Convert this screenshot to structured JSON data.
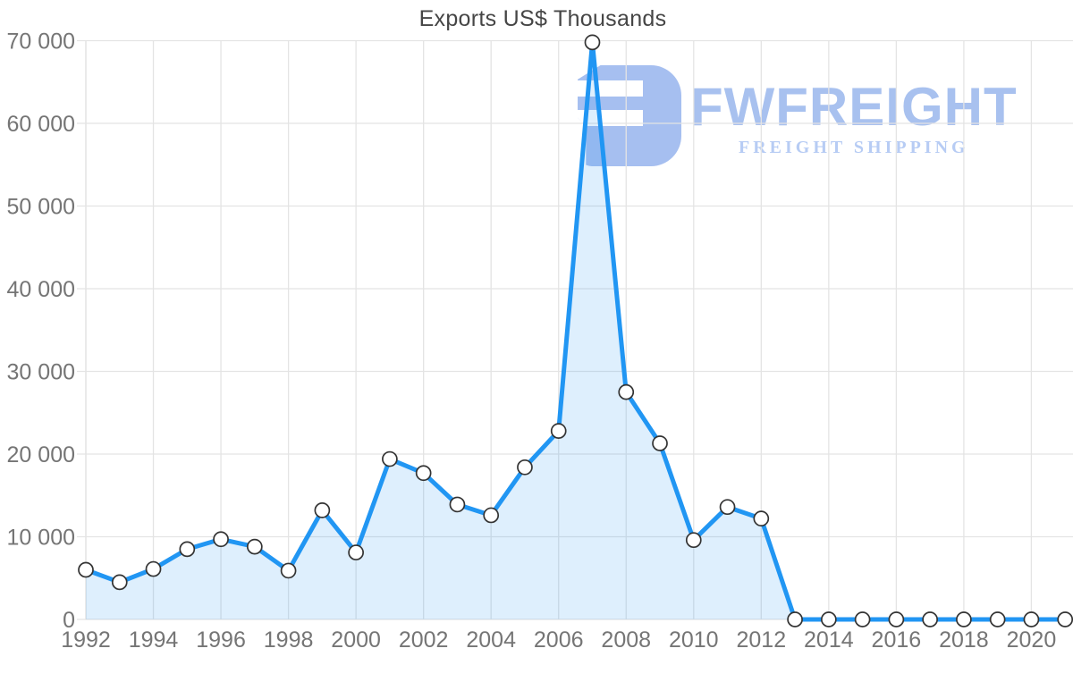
{
  "title": "Exports US$ Thousands",
  "watermark": {
    "brand": "FWFREIGHT",
    "tagline": "FREIGHT SHIPPING"
  },
  "colors": {
    "line": "#2196f3",
    "area": "rgba(33, 150, 243, 0.15)",
    "grid": "#e4e4e4",
    "axis_label": "#757575",
    "title_color": "#464646",
    "marker_fill": "#ffffff",
    "marker_stroke": "#333333",
    "watermark_brand": "#a8c1ef",
    "watermark_tagline": "#b7ccf4",
    "watermark_logo": "#a6bff0"
  },
  "chart_data": {
    "type": "area",
    "title": "Exports US$ Thousands",
    "x": [
      1992,
      1993,
      1994,
      1995,
      1996,
      1997,
      1998,
      1999,
      2000,
      2001,
      2002,
      2003,
      2004,
      2005,
      2006,
      2007,
      2008,
      2009,
      2010,
      2011,
      2012,
      2013,
      2014,
      2015,
      2016,
      2017,
      2018,
      2019,
      2020,
      2021
    ],
    "values": [
      6000,
      4500,
      6100,
      8500,
      9700,
      8800,
      5900,
      13200,
      8100,
      19400,
      17700,
      13900,
      12600,
      18400,
      22800,
      69800,
      27500,
      21300,
      9600,
      13600,
      12200,
      0,
      0,
      0,
      0,
      0,
      0,
      0,
      0,
      0
    ],
    "xlabel": "",
    "ylabel": "",
    "ylim": [
      0,
      70000
    ],
    "y_tick_step": 10000,
    "y_tick_labels": [
      "0",
      "10 000",
      "20 000",
      "30 000",
      "40 000",
      "50 000",
      "60 000",
      "70 000"
    ],
    "x_tick_labels": [
      "1992",
      "1994",
      "1996",
      "1998",
      "2000",
      "2002",
      "2004",
      "2006",
      "2008",
      "2010",
      "2012",
      "2014",
      "2016",
      "2018",
      "2020"
    ],
    "x_tick_every": 2,
    "grid": true,
    "legend": false
  }
}
